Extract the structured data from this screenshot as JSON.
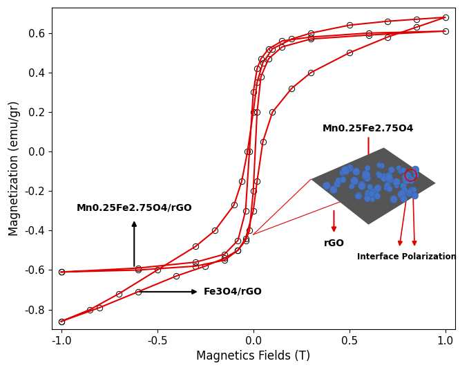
{
  "chart_data": {
    "type": "line",
    "x_label": "Magnetics Fields (T)",
    "y_label": "Magnetization (emu/gr)",
    "xlim": [
      -1.05,
      1.05
    ],
    "xticks": [
      -1.0,
      -0.5,
      0.0,
      0.5,
      1.0
    ],
    "ylim": [
      -0.9,
      0.73
    ],
    "yticks": [
      -0.8,
      -0.6,
      -0.4,
      -0.2,
      0.0,
      0.2,
      0.4,
      0.6
    ],
    "grid": false,
    "marker": "o",
    "series": [
      {
        "name": "Mn0.25Fe2.75O4/rGO",
        "color": "#e00000",
        "x": [
          -1,
          -0.6,
          -0.3,
          -0.15,
          -0.08,
          -0.04,
          -0.02,
          0,
          0.02,
          0.04,
          0.08,
          0.15,
          0.3,
          0.6,
          1,
          0.6,
          0.3,
          0.15,
          0.08,
          0.04,
          0.02,
          0,
          -0.02,
          -0.04,
          -0.08,
          -0.15,
          -0.3,
          -0.6,
          -1
        ],
        "values": [
          -0.61,
          -0.6,
          -0.58,
          -0.55,
          -0.5,
          -0.45,
          -0.4,
          -0.2,
          0.2,
          0.38,
          0.47,
          0.53,
          0.57,
          0.59,
          0.61,
          0.6,
          0.58,
          0.56,
          0.52,
          0.47,
          0.42,
          0.3,
          0.0,
          -0.3,
          -0.45,
          -0.52,
          -0.56,
          -0.59,
          -0.61
        ]
      },
      {
        "name": "Fe3O4/rGO",
        "color": "#e00000",
        "x": [
          -1,
          -0.8,
          -0.6,
          -0.4,
          -0.25,
          -0.15,
          -0.08,
          -0.04,
          0,
          0.02,
          0.05,
          0.1,
          0.2,
          0.3,
          0.5,
          0.7,
          0.85,
          1.0,
          0.85,
          0.7,
          0.5,
          0.3,
          0.2,
          0.1,
          0.05,
          0.02,
          0,
          -0.03,
          -0.06,
          -0.1,
          -0.2,
          -0.3,
          -0.5,
          -0.7,
          -0.85,
          -1
        ],
        "values": [
          -0.86,
          -0.79,
          -0.71,
          -0.63,
          -0.58,
          -0.54,
          -0.5,
          -0.44,
          -0.3,
          -0.15,
          0.05,
          0.2,
          0.32,
          0.4,
          0.5,
          0.58,
          0.63,
          0.68,
          0.67,
          0.66,
          0.64,
          0.6,
          0.57,
          0.52,
          0.45,
          0.35,
          0.2,
          0.0,
          -0.15,
          -0.27,
          -0.4,
          -0.48,
          -0.6,
          -0.72,
          -0.8,
          -0.86
        ]
      }
    ],
    "annotations": [
      "Mn0.25Fe2.75O4",
      "rGO",
      "Interface Polarization"
    ]
  }
}
